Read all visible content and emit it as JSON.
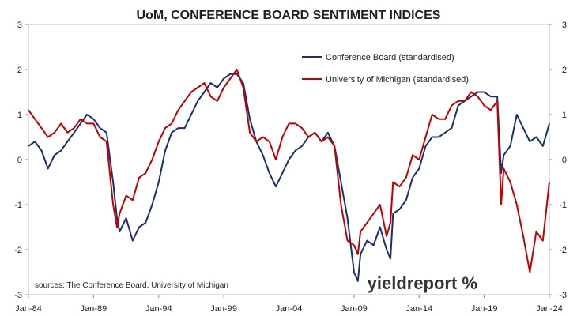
{
  "chart_data": {
    "type": "line",
    "title": "UoM, CONFERENCE BOARD SENTIMENT INDICES",
    "source": "sources: The Conference Board, University of Michigan",
    "brand": "yieldreport %",
    "xlabel": "",
    "ylabel": "",
    "x_ticks": [
      "Jan-84",
      "Jan-89",
      "Jan-94",
      "Jan-99",
      "Jan-04",
      "Jan-09",
      "Jan-14",
      "Jan-19",
      "Jan-24"
    ],
    "xlim": [
      1984.0,
      2024.0
    ],
    "ylim": [
      -3,
      3
    ],
    "y_ticks_left": [
      "3",
      "2",
      "1",
      "0",
      "-1",
      "-2",
      "-3"
    ],
    "y_ticks_right": [
      "3",
      "2",
      "1",
      "0",
      "-1",
      "-2",
      "-3"
    ],
    "grid": false,
    "legend_position": "upper-right",
    "series": [
      {
        "name": "Conference Board (standardised)",
        "color": "#1b2f6e",
        "x": [
          1984.0,
          1984.5,
          1985.0,
          1985.5,
          1986.0,
          1986.5,
          1987.0,
          1987.5,
          1988.0,
          1988.5,
          1989.0,
          1989.5,
          1990.0,
          1990.5,
          1990.8,
          1991.0,
          1991.5,
          1992.0,
          1992.5,
          1993.0,
          1993.5,
          1994.0,
          1994.5,
          1995.0,
          1995.5,
          1996.0,
          1996.5,
          1997.0,
          1997.5,
          1998.0,
          1998.5,
          1999.0,
          1999.5,
          2000.0,
          2000.5,
          2001.0,
          2001.5,
          2002.0,
          2002.5,
          2003.0,
          2003.5,
          2004.0,
          2004.5,
          2005.0,
          2005.5,
          2006.0,
          2006.5,
          2007.0,
          2007.5,
          2008.0,
          2008.5,
          2009.0,
          2009.3,
          2009.5,
          2010.0,
          2010.5,
          2011.0,
          2011.5,
          2011.8,
          2012.0,
          2012.5,
          2013.0,
          2013.5,
          2014.0,
          2014.5,
          2015.0,
          2015.5,
          2016.0,
          2016.5,
          2017.0,
          2017.5,
          2018.0,
          2018.5,
          2019.0,
          2019.5,
          2020.0,
          2020.3,
          2020.5,
          2021.0,
          2021.5,
          2022.0,
          2022.5,
          2023.0,
          2023.5,
          2024.0
        ],
        "values": [
          0.3,
          0.4,
          0.2,
          -0.2,
          0.1,
          0.2,
          0.4,
          0.6,
          0.8,
          1.0,
          0.9,
          0.7,
          0.6,
          -0.5,
          -1.3,
          -1.6,
          -1.3,
          -1.8,
          -1.5,
          -1.4,
          -1.0,
          -0.5,
          0.2,
          0.6,
          0.7,
          0.7,
          1.0,
          1.3,
          1.5,
          1.7,
          1.6,
          1.8,
          1.9,
          1.9,
          1.7,
          0.9,
          0.4,
          0.1,
          -0.3,
          -0.6,
          -0.3,
          0.0,
          0.2,
          0.3,
          0.5,
          0.6,
          0.4,
          0.6,
          0.3,
          -0.5,
          -1.3,
          -2.5,
          -2.7,
          -2.1,
          -1.8,
          -1.9,
          -1.5,
          -2.0,
          -2.2,
          -1.2,
          -1.1,
          -0.9,
          -0.4,
          -0.2,
          0.3,
          0.5,
          0.5,
          0.6,
          0.7,
          1.2,
          1.3,
          1.4,
          1.5,
          1.5,
          1.4,
          1.4,
          -0.3,
          0.1,
          0.3,
          1.0,
          0.7,
          0.4,
          0.5,
          0.3,
          0.8
        ]
      },
      {
        "name": "University of Michigan (standardised)",
        "color": "#c00000",
        "x": [
          1984.0,
          1984.5,
          1985.0,
          1985.5,
          1986.0,
          1986.5,
          1987.0,
          1987.5,
          1988.0,
          1988.5,
          1989.0,
          1989.5,
          1990.0,
          1990.5,
          1990.8,
          1991.0,
          1991.5,
          1992.0,
          1992.5,
          1993.0,
          1993.5,
          1994.0,
          1994.5,
          1995.0,
          1995.5,
          1996.0,
          1996.5,
          1997.0,
          1997.5,
          1998.0,
          1998.5,
          1999.0,
          1999.5,
          2000.0,
          2000.5,
          2001.0,
          2001.5,
          2002.0,
          2002.5,
          2003.0,
          2003.5,
          2004.0,
          2004.5,
          2005.0,
          2005.5,
          2006.0,
          2006.5,
          2007.0,
          2007.5,
          2008.0,
          2008.5,
          2009.0,
          2009.3,
          2009.5,
          2010.0,
          2010.5,
          2011.0,
          2011.5,
          2011.8,
          2012.0,
          2012.5,
          2013.0,
          2013.5,
          2014.0,
          2014.5,
          2015.0,
          2015.5,
          2016.0,
          2016.5,
          2017.0,
          2017.5,
          2018.0,
          2018.5,
          2019.0,
          2019.5,
          2020.0,
          2020.3,
          2020.5,
          2021.0,
          2021.5,
          2022.0,
          2022.5,
          2023.0,
          2023.5,
          2024.0
        ],
        "values": [
          1.1,
          0.9,
          0.7,
          0.5,
          0.6,
          0.8,
          0.6,
          0.7,
          0.9,
          0.8,
          0.8,
          0.5,
          0.4,
          -1.0,
          -1.5,
          -1.2,
          -0.8,
          -0.9,
          -0.4,
          -0.3,
          0.0,
          0.4,
          0.7,
          0.8,
          1.1,
          1.3,
          1.5,
          1.6,
          1.7,
          1.4,
          1.3,
          1.6,
          1.8,
          2.0,
          1.6,
          0.6,
          0.4,
          0.5,
          0.4,
          0.0,
          0.5,
          0.8,
          0.8,
          0.7,
          0.5,
          0.6,
          0.4,
          0.5,
          0.3,
          -1.0,
          -1.8,
          -1.9,
          -2.1,
          -1.6,
          -1.4,
          -1.2,
          -1.0,
          -1.7,
          -1.4,
          -0.5,
          -0.6,
          -0.4,
          0.1,
          0.0,
          0.5,
          1.0,
          0.9,
          0.9,
          1.2,
          1.3,
          1.3,
          1.5,
          1.4,
          1.2,
          1.1,
          1.3,
          -1.0,
          -0.2,
          -0.5,
          -1.0,
          -1.7,
          -2.5,
          -1.6,
          -1.8,
          -0.5
        ]
      }
    ]
  }
}
